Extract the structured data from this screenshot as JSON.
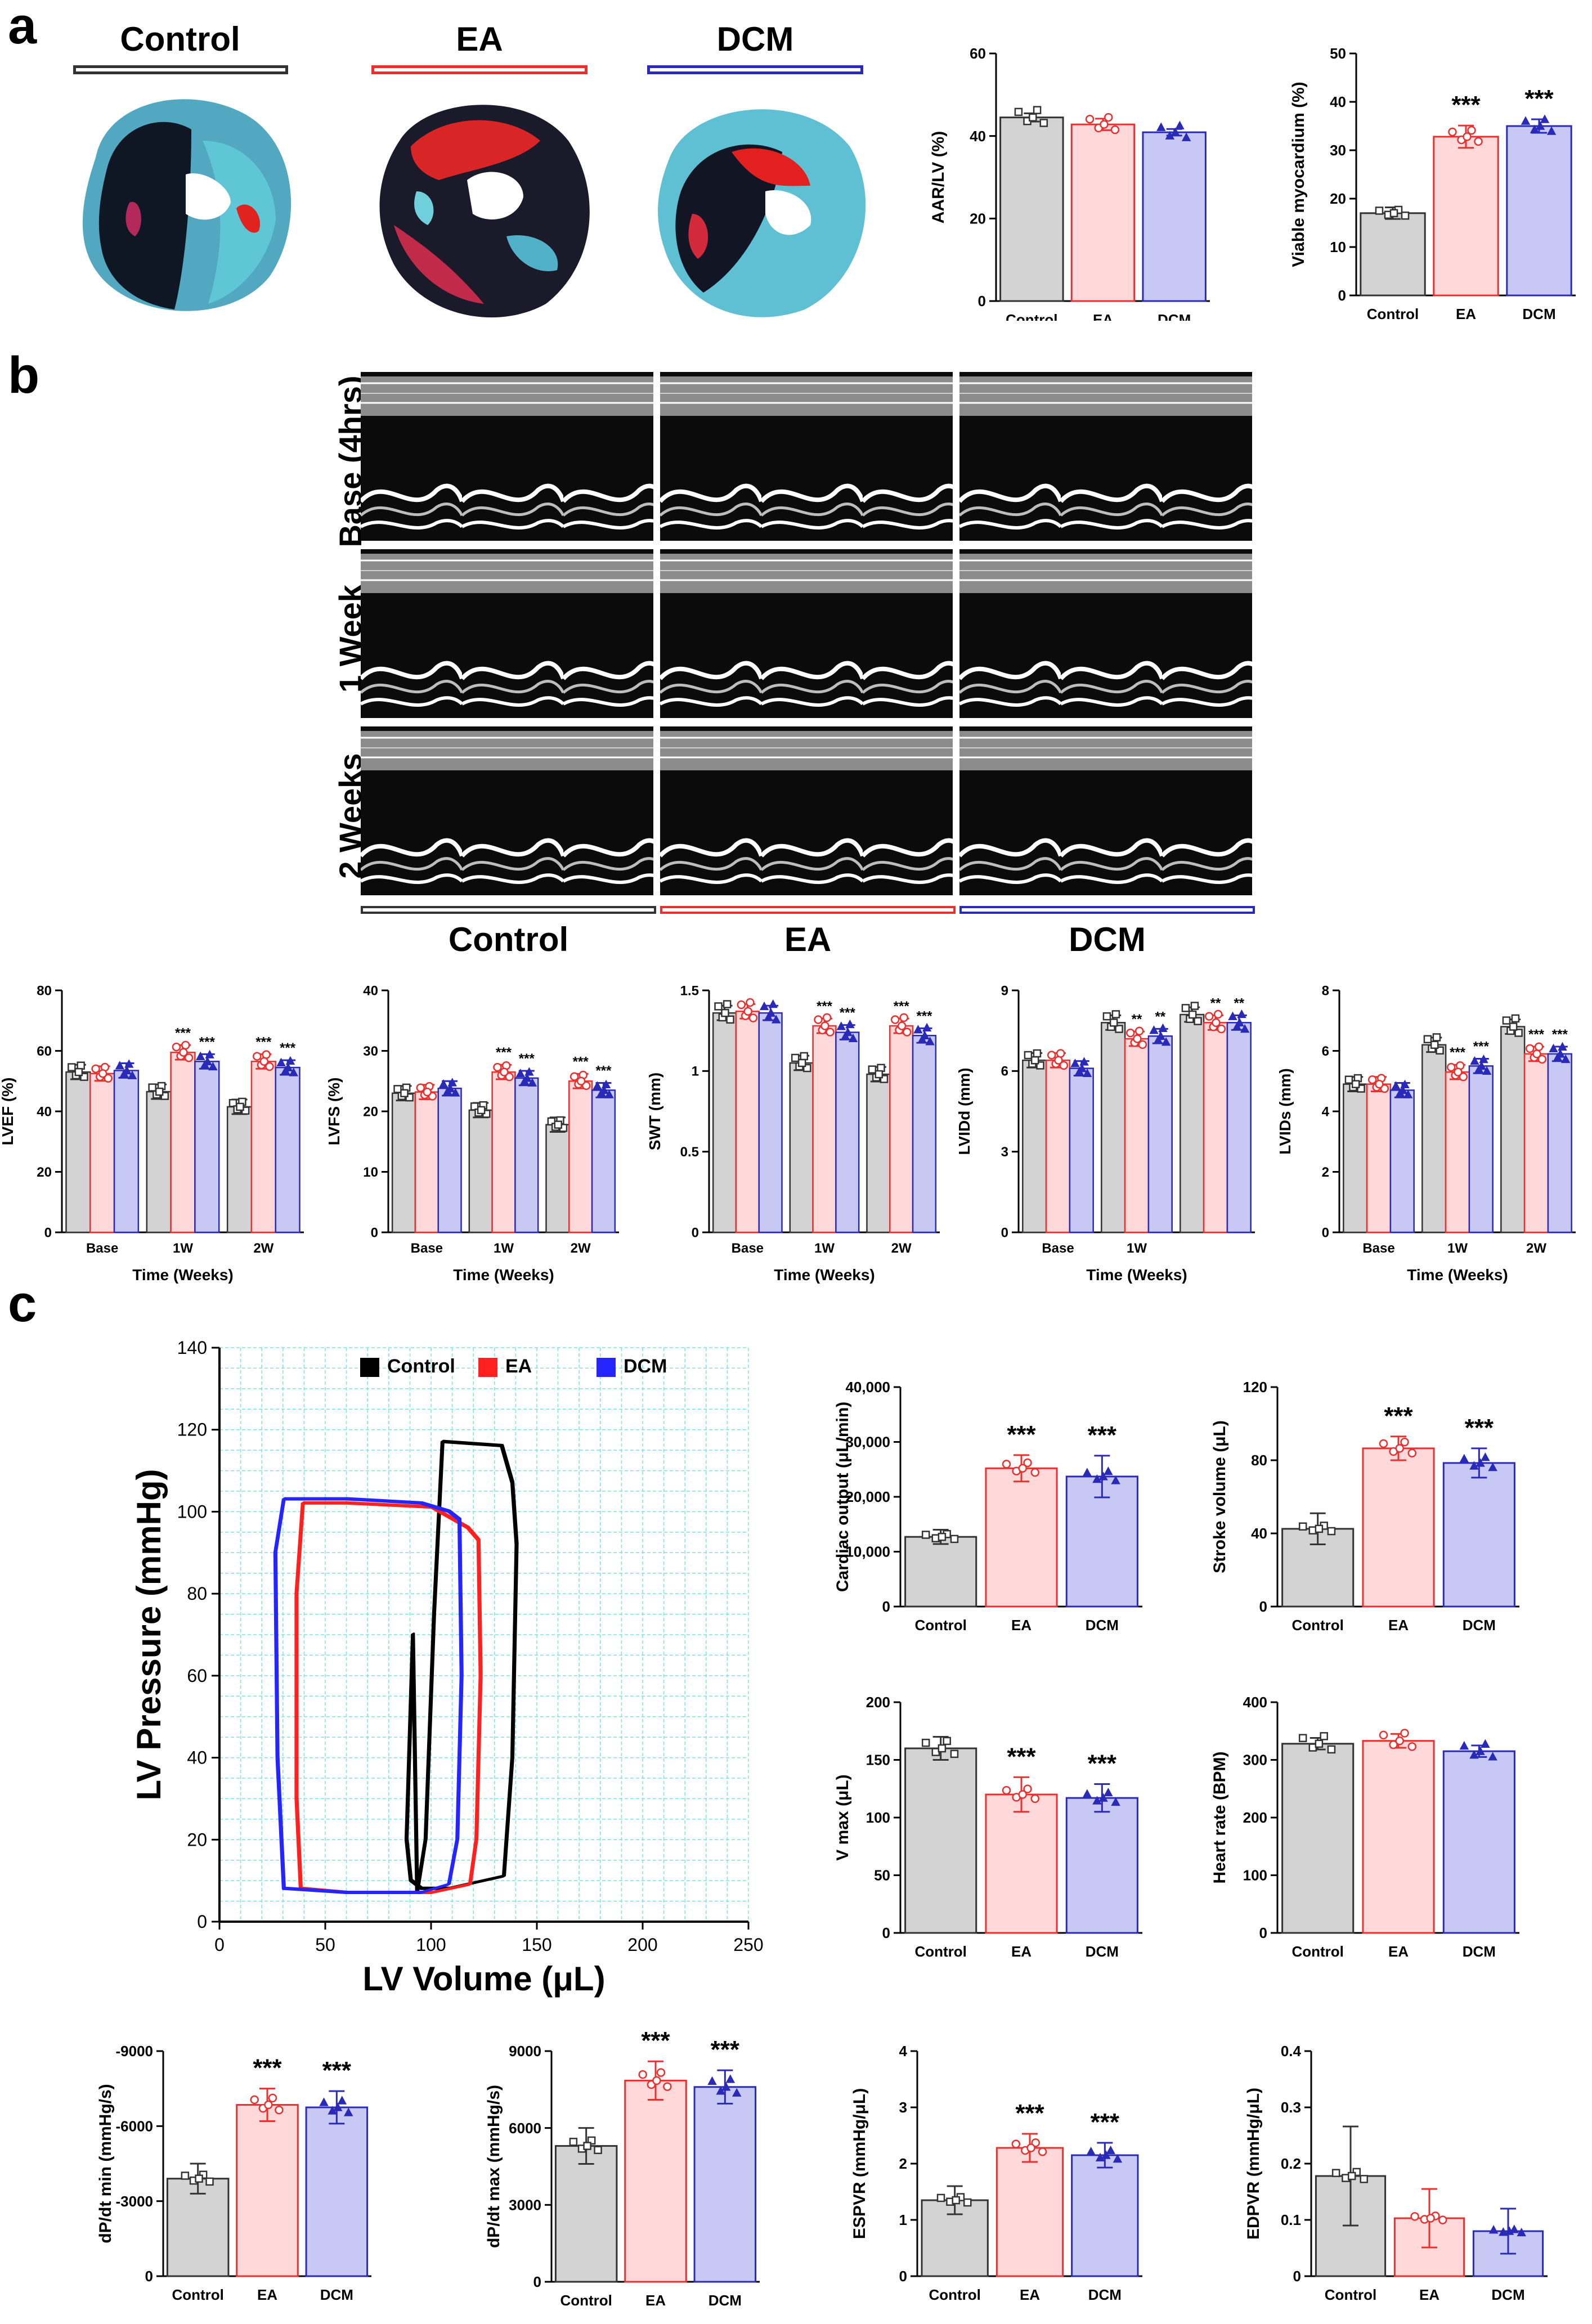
{
  "panels": {
    "a": "a",
    "b": "b",
    "c": "c"
  },
  "groups": [
    "Control",
    "EA",
    "DCM"
  ],
  "colors": {
    "control_fill": "#d3d3d3",
    "control_stroke": "#333333",
    "ea_fill": "#ffd9d9",
    "ea_stroke": "#e8302f",
    "dcm_fill": "#c8c8f5",
    "dcm_stroke": "#2a2ab8",
    "loop_control": "#000000",
    "loop_ea": "#ff2020",
    "loop_dcm": "#2525ff",
    "grid": "#7fe0e0"
  },
  "panel_a": {
    "heart_labels": [
      "Control",
      "EA",
      "DCM"
    ]
  },
  "panel_b": {
    "row_labels": [
      "Base (4hrs)",
      "1 Week",
      "2 Weeks"
    ],
    "col_labels": [
      "Control",
      "EA",
      "DCM"
    ]
  },
  "chart_data": [
    {
      "id": "aar_lv",
      "type": "bar",
      "ylabel": "AAR/LV (%)",
      "categories": [
        "Control",
        "EA",
        "DCM"
      ],
      "values": [
        44.5,
        42.8,
        40.9
      ],
      "errors": [
        1.0,
        1.4,
        0.8
      ],
      "ylim": [
        0,
        60
      ],
      "yticks": [
        0,
        20,
        40,
        60
      ],
      "sig": [
        "",
        "",
        ""
      ]
    },
    {
      "id": "viable_myocardium",
      "type": "bar",
      "ylabel": "Viable myocardium (%)",
      "categories": [
        "Control",
        "EA",
        "DCM"
      ],
      "values": [
        17.0,
        32.8,
        35.0
      ],
      "errors": [
        1.2,
        2.3,
        1.4
      ],
      "ylim": [
        0,
        50
      ],
      "yticks": [
        0,
        10,
        20,
        30,
        40,
        50
      ],
      "sig": [
        "",
        "***",
        "***"
      ]
    },
    {
      "id": "lvef",
      "type": "bar",
      "ylabel": "LVEF (%)",
      "xlabel": "Time (Weeks)",
      "categories": [
        "Base",
        "1W",
        "2W"
      ],
      "series": [
        {
          "name": "Control",
          "values": [
            53,
            46.5,
            41.5
          ]
        },
        {
          "name": "EA",
          "values": [
            52.5,
            59.5,
            56.5
          ]
        },
        {
          "name": "DCM",
          "values": [
            53.5,
            56.5,
            54.5
          ]
        }
      ],
      "ylim": [
        0,
        80
      ],
      "yticks": [
        0,
        20,
        40,
        60,
        80
      ],
      "sig": [
        [
          "",
          "",
          ""
        ],
        [
          "",
          "***",
          "***"
        ],
        [
          "",
          "***",
          "***"
        ]
      ]
    },
    {
      "id": "lvfs",
      "type": "bar",
      "ylabel": "LVFS (%)",
      "xlabel": "Time (Weeks)",
      "categories": [
        "Base",
        "1W",
        "2W"
      ],
      "series": [
        {
          "name": "Control",
          "values": [
            23,
            20.2,
            17.8
          ]
        },
        {
          "name": "EA",
          "values": [
            23.2,
            26.5,
            25.0
          ]
        },
        {
          "name": "DCM",
          "values": [
            23.8,
            25.5,
            23.5
          ]
        }
      ],
      "ylim": [
        0,
        40
      ],
      "yticks": [
        0,
        10,
        20,
        30,
        40
      ],
      "sig": [
        [
          "",
          "",
          ""
        ],
        [
          "",
          "***",
          "***"
        ],
        [
          "",
          "***",
          "***"
        ]
      ]
    },
    {
      "id": "swt",
      "type": "bar",
      "ylabel": "SWT (mm)",
      "xlabel": "Time (Weeks)",
      "categories": [
        "Base",
        "1W",
        "2W"
      ],
      "series": [
        {
          "name": "Control",
          "values": [
            1.36,
            1.05,
            0.98
          ]
        },
        {
          "name": "EA",
          "values": [
            1.37,
            1.28,
            1.28
          ]
        },
        {
          "name": "DCM",
          "values": [
            1.36,
            1.24,
            1.22
          ]
        }
      ],
      "ylim": [
        0,
        1.5
      ],
      "yticks": [
        0.0,
        0.5,
        1.0,
        1.5
      ],
      "sig": [
        [
          "",
          "",
          ""
        ],
        [
          "",
          "***",
          "***"
        ],
        [
          "",
          "***",
          "***"
        ]
      ]
    },
    {
      "id": "lvidd",
      "type": "bar",
      "ylabel": "LVIDd (mm)",
      "xlabel": "Time (Weeks)",
      "categories": [
        "Base",
        "1W",
        ""
      ],
      "series": [
        {
          "name": "Control",
          "values": [
            6.4,
            7.8,
            8.1
          ]
        },
        {
          "name": "EA",
          "values": [
            6.4,
            7.2,
            7.8
          ]
        },
        {
          "name": "DCM",
          "values": [
            6.1,
            7.3,
            7.8
          ]
        }
      ],
      "ylim": [
        0,
        9
      ],
      "yticks": [
        0,
        3,
        6,
        9
      ],
      "sig": [
        [
          "",
          "",
          ""
        ],
        [
          "",
          "**",
          "**"
        ],
        [
          "",
          "**",
          "**"
        ]
      ]
    },
    {
      "id": "lvids",
      "type": "bar",
      "ylabel": "LVIDs (mm)",
      "xlabel": "Time (Weeks)",
      "categories": [
        "Base",
        "1W",
        "2W"
      ],
      "series": [
        {
          "name": "Control",
          "values": [
            4.9,
            6.2,
            6.8
          ]
        },
        {
          "name": "EA",
          "values": [
            4.9,
            5.3,
            5.9
          ]
        },
        {
          "name": "DCM",
          "values": [
            4.7,
            5.5,
            5.9
          ]
        }
      ],
      "ylim": [
        0,
        8
      ],
      "yticks": [
        0,
        2,
        4,
        6,
        8
      ],
      "sig": [
        [
          "",
          "",
          ""
        ],
        [
          "",
          "***",
          "***"
        ],
        [
          "",
          "***",
          "***"
        ]
      ]
    },
    {
      "id": "pv_loop",
      "type": "line",
      "title": "",
      "xlabel": "LV Volume (μL)",
      "ylabel": "LV Pressure (mmHg)",
      "xlim": [
        0,
        250
      ],
      "ylim": [
        0,
        140
      ],
      "xticks": [
        0,
        50,
        100,
        150,
        200,
        250
      ],
      "yticks": [
        0,
        20,
        40,
        60,
        80,
        100,
        120,
        140
      ],
      "legend": [
        "Control",
        "EA",
        "DCM"
      ],
      "series": [
        {
          "name": "Control",
          "x": [
            93,
            97,
            101,
            105,
            133,
            138,
            140,
            138,
            134,
            108,
            95,
            90,
            88,
            91,
            93
          ],
          "y": [
            7,
            20,
            75,
            117,
            116,
            107,
            92,
            40,
            11,
            8,
            8,
            10,
            20,
            70,
            7
          ]
        },
        {
          "name": "EA",
          "x": [
            38,
            36,
            36,
            39,
            60,
            100,
            117,
            122,
            123,
            121,
            118,
            100,
            60,
            38
          ],
          "y": [
            8,
            30,
            80,
            102,
            102,
            101,
            96,
            93,
            60,
            20,
            9,
            7,
            7,
            8
          ]
        },
        {
          "name": "DCM",
          "x": [
            30,
            27,
            26,
            30,
            60,
            95,
            108,
            113,
            114,
            112,
            108,
            95,
            60,
            30
          ],
          "y": [
            8,
            40,
            90,
            103,
            103,
            102,
            100,
            98,
            60,
            20,
            9,
            7,
            7,
            8
          ]
        }
      ]
    },
    {
      "id": "cardiac_output",
      "type": "bar",
      "ylabel": "Cardiac output (μL/min)",
      "categories": [
        "Control",
        "EA",
        "DCM"
      ],
      "values": [
        12700,
        25200,
        23700
      ],
      "errors": [
        1300,
        2400,
        3800
      ],
      "ylim": [
        0,
        40000
      ],
      "yticks": [
        0,
        10000,
        20000,
        30000,
        40000
      ],
      "yticklabels": [
        "0",
        "10,000",
        "20,000",
        "30,000",
        "40,000"
      ],
      "sig": [
        "",
        "***",
        "***"
      ]
    },
    {
      "id": "stroke_volume",
      "type": "bar",
      "ylabel": "Stroke volume (μL)",
      "categories": [
        "Control",
        "EA",
        "DCM"
      ],
      "values": [
        42.5,
        86.5,
        78.5
      ],
      "errors": [
        8.5,
        6.5,
        8.0
      ],
      "ylim": [
        0,
        120
      ],
      "yticks": [
        0,
        40,
        80,
        120
      ],
      "sig": [
        "",
        "***",
        "***"
      ]
    },
    {
      "id": "v_max",
      "type": "bar",
      "ylabel": "V max (μL)",
      "categories": [
        "Control",
        "EA",
        "DCM"
      ],
      "values": [
        160,
        120,
        117
      ],
      "errors": [
        10,
        15,
        12
      ],
      "ylim": [
        0,
        200
      ],
      "yticks": [
        0,
        50,
        100,
        150,
        200
      ],
      "sig": [
        "",
        "***",
        "***"
      ]
    },
    {
      "id": "heart_rate",
      "type": "bar",
      "ylabel": "Heart rate (BPM)",
      "categories": [
        "Control",
        "EA",
        "DCM"
      ],
      "values": [
        328,
        333,
        315
      ],
      "errors": [
        10,
        12,
        10
      ],
      "ylim": [
        0,
        400
      ],
      "yticks": [
        0,
        100,
        200,
        300,
        400
      ],
      "sig": [
        "",
        "",
        ""
      ]
    },
    {
      "id": "dpdt_min",
      "type": "bar",
      "ylabel": "dP/dt min (mmHg/s)",
      "categories": [
        "Control",
        "EA",
        "DCM"
      ],
      "values": [
        3900,
        6850,
        6750
      ],
      "errors": [
        600,
        650,
        650
      ],
      "ylim": [
        0,
        9000
      ],
      "yticks": [
        0,
        3000,
        6000,
        9000
      ],
      "yticklabels": [
        "0",
        "-3000",
        "-6000",
        "-9000"
      ],
      "sig": [
        "",
        "***",
        "***"
      ]
    },
    {
      "id": "dpdt_max",
      "type": "bar",
      "ylabel": "dP/dt max (mmHg/s)",
      "categories": [
        "Control",
        "EA",
        "DCM"
      ],
      "values": [
        5300,
        7850,
        7600
      ],
      "errors": [
        700,
        750,
        650
      ],
      "ylim": [
        0,
        9000
      ],
      "yticks": [
        0,
        3000,
        6000,
        9000
      ],
      "sig": [
        "",
        "***",
        "***"
      ]
    },
    {
      "id": "espvr",
      "type": "bar",
      "ylabel": "ESPVR (mmHg/μL)",
      "categories": [
        "Control",
        "EA",
        "DCM"
      ],
      "values": [
        1.35,
        2.28,
        2.15
      ],
      "errors": [
        0.25,
        0.25,
        0.22
      ],
      "ylim": [
        0,
        4
      ],
      "yticks": [
        0,
        1,
        2,
        3,
        4
      ],
      "sig": [
        "",
        "***",
        "***"
      ]
    },
    {
      "id": "edpvr",
      "type": "bar",
      "ylabel": "EDPVR (mmHg/μL)",
      "categories": [
        "Control",
        "EA",
        "DCM"
      ],
      "values": [
        0.178,
        0.103,
        0.08
      ],
      "errors": [
        0.088,
        0.052,
        0.04
      ],
      "ylim": [
        0,
        0.4
      ],
      "yticks": [
        0.0,
        0.1,
        0.2,
        0.3,
        0.4
      ],
      "sig": [
        "",
        "",
        ""
      ]
    }
  ]
}
